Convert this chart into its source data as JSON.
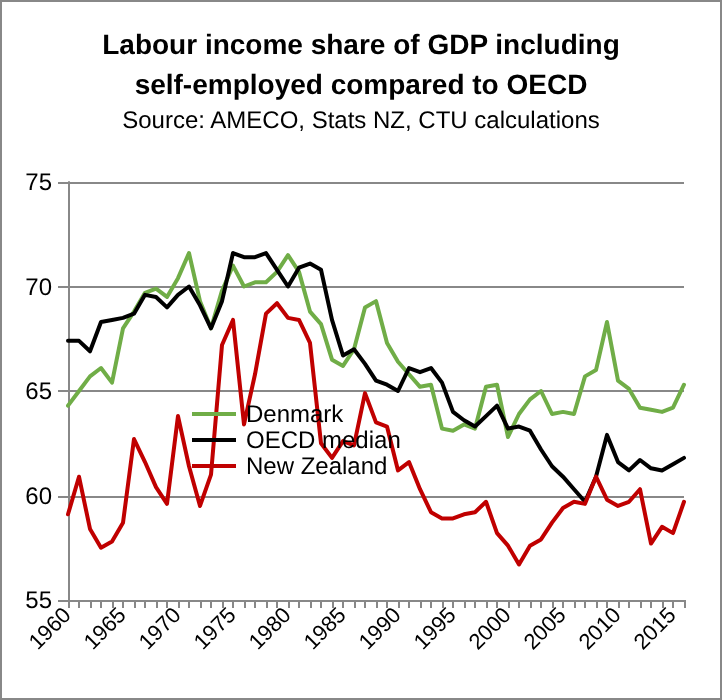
{
  "chart_data": {
    "type": "line",
    "title": "Labour income share of GDP including\nself-employed compared to OECD",
    "subtitle": "Source: AMECO, Stats NZ, CTU calculations",
    "categories": [
      "1960",
      null,
      null,
      null,
      null,
      "1965",
      null,
      null,
      null,
      null,
      "1970",
      null,
      null,
      null,
      null,
      "1975",
      null,
      null,
      null,
      null,
      "1980",
      null,
      null,
      null,
      null,
      "1985",
      null,
      null,
      null,
      null,
      "1990",
      null,
      null,
      null,
      null,
      "1995",
      null,
      null,
      null,
      null,
      "2000",
      null,
      null,
      null,
      null,
      "2005",
      null,
      null,
      null,
      null,
      "2010",
      null,
      null,
      null,
      null,
      "2015",
      null
    ],
    "series": [
      {
        "name": "Denmark",
        "color": "#70ad47",
        "values": [
          64.3,
          65.0,
          65.7,
          66.1,
          65.4,
          68.0,
          68.8,
          69.7,
          69.9,
          69.5,
          70.4,
          71.6,
          69.3,
          68.0,
          69.8,
          71.0,
          70.0,
          70.2,
          70.2,
          70.7,
          71.5,
          70.7,
          68.8,
          68.2,
          66.5,
          66.2,
          67.0,
          69.0,
          69.3,
          67.3,
          66.4,
          65.8,
          65.2,
          65.3,
          63.2,
          63.1,
          63.4,
          63.2,
          65.2,
          65.3,
          62.8,
          63.9,
          64.6,
          65.0,
          63.9,
          64.0,
          63.9,
          65.7,
          66.0,
          68.3,
          65.5,
          65.1,
          64.2,
          64.1,
          64.0,
          64.2,
          65.3
        ]
      },
      {
        "name": "OECD median",
        "color": "#000000",
        "values": [
          67.4,
          67.4,
          66.9,
          68.3,
          68.4,
          68.5,
          68.7,
          69.6,
          69.5,
          69.0,
          69.6,
          70.0,
          69.1,
          68.0,
          69.3,
          71.6,
          71.4,
          71.4,
          71.6,
          70.8,
          70.0,
          70.9,
          71.1,
          70.8,
          68.4,
          66.7,
          67.0,
          66.3,
          65.5,
          65.3,
          65.0,
          66.1,
          65.9,
          66.1,
          65.4,
          64.0,
          63.6,
          63.3,
          63.8,
          64.3,
          63.2,
          63.3,
          63.1,
          62.2,
          61.4,
          60.9,
          60.3,
          59.7,
          60.9,
          62.9,
          61.6,
          61.2,
          61.7,
          61.3,
          61.2,
          61.5,
          61.8
        ]
      },
      {
        "name": "New Zealand",
        "color": "#c00000",
        "values": [
          59.1,
          60.9,
          58.4,
          57.5,
          57.8,
          58.7,
          62.7,
          61.6,
          60.4,
          59.6,
          63.8,
          61.4,
          59.5,
          61.0,
          67.2,
          68.4,
          63.4,
          65.8,
          68.7,
          69.2,
          68.5,
          68.4,
          67.3,
          62.5,
          61.8,
          62.6,
          62.4,
          64.9,
          63.5,
          63.3,
          61.2,
          61.6,
          60.3,
          59.2,
          58.9,
          58.9,
          59.1,
          59.2,
          59.7,
          58.2,
          57.6,
          56.7,
          57.6,
          57.9,
          58.7,
          59.4,
          59.7,
          59.6,
          60.9,
          59.8,
          59.5,
          59.7,
          60.3,
          57.7,
          58.5,
          58.2,
          59.7
        ]
      }
    ],
    "ylim": [
      55,
      75
    ],
    "yticks": [
      55,
      60,
      65,
      70,
      75
    ],
    "grid": "y",
    "legend": "bottom left",
    "marker": "none",
    "line_style": "solid"
  }
}
